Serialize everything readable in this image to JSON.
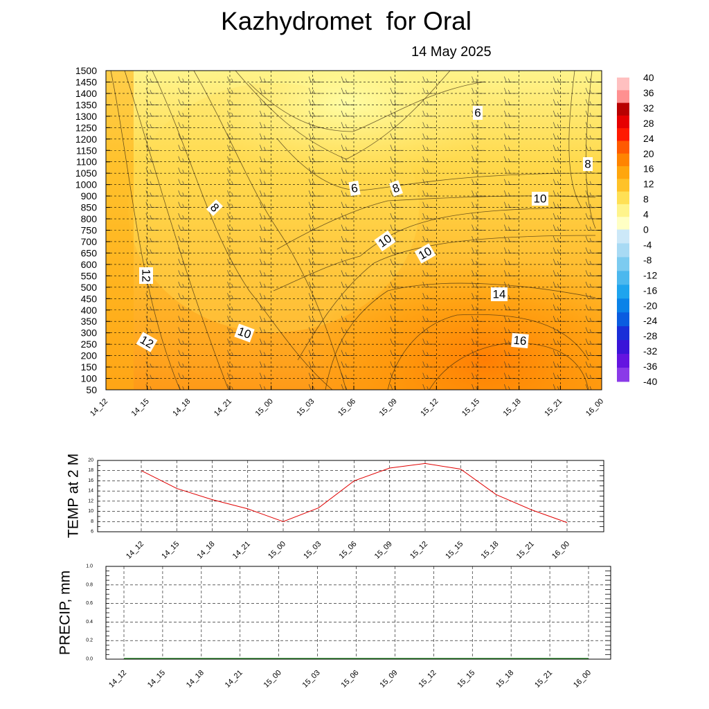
{
  "header": {
    "title": "Kazhydromet  for Oral",
    "date": "14 May 2025"
  },
  "colors": {
    "warm_scale": [
      "#ffffc4",
      "#fff48c",
      "#ffe055",
      "#ffc228",
      "#ffa60d",
      "#ff8400",
      "#ff5a00",
      "#ff1a00",
      "#e60000",
      "#b80000",
      "#ff9090",
      "#ffc0c0"
    ],
    "cold_scale": [
      "#cce8f8",
      "#a8daf4",
      "#7ccbf0",
      "#4cb8ee",
      "#1ea4ee",
      "#0a82e8",
      "#0a5ce0",
      "#1a2ed8",
      "#3a14d8",
      "#6414e0",
      "#8a3ae8"
    ],
    "temp_line": "#e00000",
    "grid_line": "#000000"
  },
  "chart_data": [
    {
      "type": "heatmap",
      "x_ticks": [
        "14_12",
        "14_15",
        "14_18",
        "14_21",
        "15_00",
        "15_03",
        "15_06",
        "15_09",
        "15_12",
        "15_15",
        "15_18",
        "15_21",
        "16_00"
      ],
      "y_ticks": [
        "1500",
        "1450",
        "1400",
        "1350",
        "1300",
        "1250",
        "1200",
        "1150",
        "1100",
        "1050",
        "1000",
        "900",
        "850",
        "800",
        "750",
        "700",
        "650",
        "600",
        "550",
        "500",
        "450",
        "400",
        "350",
        "300",
        "250",
        "200",
        "150",
        "100",
        "50"
      ],
      "colorbar_ticks": [
        "40",
        "36",
        "32",
        "28",
        "24",
        "20",
        "16",
        "12",
        "8",
        "4",
        "0",
        "-4",
        "-8",
        "-12",
        "-16",
        "-20",
        "-24",
        "-28",
        "-32",
        "-36",
        "-40"
      ],
      "contour_labels": [
        "6",
        "8",
        "6",
        "8",
        "10",
        "8",
        "10",
        "12",
        "10",
        "10",
        "14",
        "12",
        "16"
      ],
      "grid": true
    },
    {
      "type": "line",
      "ylabel": "TEMP at 2 M",
      "x": [
        "14_12",
        "14_15",
        "14_18",
        "14_21",
        "15_00",
        "15_03",
        "15_06",
        "15_09",
        "15_12",
        "15_15",
        "15_18",
        "15_21",
        "16_00"
      ],
      "series": [
        {
          "values": [
            18,
            14.5,
            12.3,
            10.5,
            8,
            10.7,
            16,
            18.5,
            19.4,
            18.3,
            13.3,
            10.3,
            7.8
          ]
        }
      ],
      "y_ticks": [
        "20",
        "18",
        "16",
        "14",
        "12",
        "10",
        "8",
        "6"
      ],
      "ylim": [
        6,
        20
      ],
      "grid": true
    },
    {
      "type": "line",
      "ylabel": "PRECIP, mm",
      "x": [
        "14_12",
        "14_15",
        "14_18",
        "14_21",
        "15_00",
        "15_03",
        "15_06",
        "15_09",
        "15_12",
        "15_15",
        "15_18",
        "15_21",
        "16_00"
      ],
      "series": [
        {
          "values": [
            0,
            0,
            0,
            0,
            0,
            0,
            0,
            0,
            0,
            0,
            0,
            0,
            0
          ]
        }
      ],
      "y_ticks": [
        "1.0",
        "0.8",
        "0.6",
        "0.4",
        "0.2",
        "0.0"
      ],
      "ylim": [
        0,
        1
      ],
      "grid": true
    }
  ]
}
